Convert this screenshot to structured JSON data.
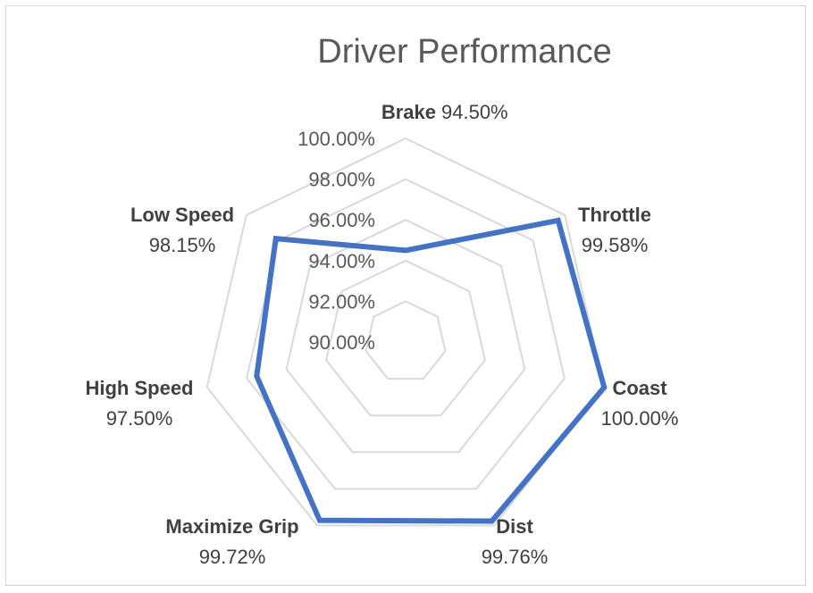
{
  "chart_data": {
    "type": "radar",
    "title": "Driver Performance",
    "categories": [
      "Brake",
      "Throttle",
      "Coast",
      "Dist",
      "Maximize Grip",
      "High Speed",
      "Low Speed"
    ],
    "series": [
      {
        "values": [
          94.5,
          99.58,
          100.0,
          99.76,
          99.72,
          97.5,
          98.15
        ],
        "labels": [
          "94.50%",
          "99.58%",
          "100.00%",
          "99.76%",
          "99.72%",
          "97.50%",
          "98.15%"
        ],
        "color": "#4472c4"
      }
    ],
    "axis": {
      "min": 90,
      "max": 100,
      "step": 2,
      "tick_labels": [
        "90.00%",
        "92.00%",
        "94.00%",
        "96.00%",
        "98.00%",
        "100.00%"
      ]
    },
    "grid": true,
    "legend": false
  }
}
